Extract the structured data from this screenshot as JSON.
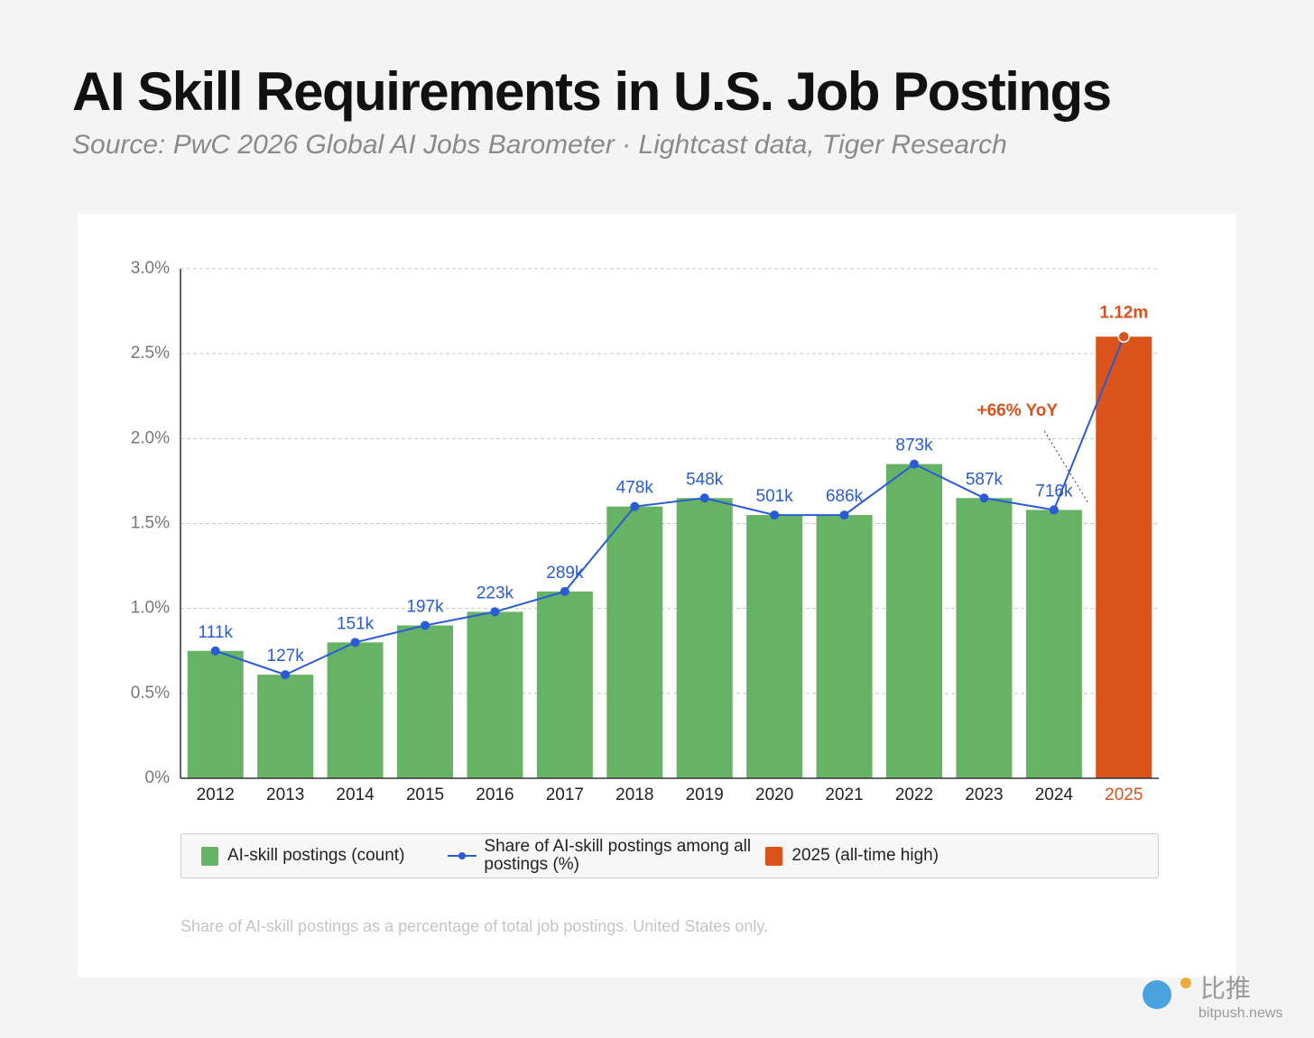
{
  "chart_data": {
    "type": "bar",
    "title": "AI Skill Requirements in U.S. Job Postings",
    "subtitle": "Source: PwC 2026 Global AI Jobs Barometer · Lightcast data, Tiger Research",
    "categories": [
      "2012",
      "2013",
      "2014",
      "2015",
      "2016",
      "2017",
      "2018",
      "2019",
      "2020",
      "2021",
      "2022",
      "2023",
      "2024",
      "2025"
    ],
    "series": [
      {
        "name": "AI-skill postings (count)",
        "type": "bar",
        "color": "#66b366",
        "values": [
          111000,
          127000,
          151000,
          197000,
          223000,
          289000,
          478000,
          548000,
          501000,
          686000,
          873000,
          587000,
          716000,
          1120000
        ],
        "value_labels": [
          "111k",
          "127k",
          "151k",
          "197k",
          "223k",
          "289k",
          "478k",
          "548k",
          "501k",
          "686k",
          "873k",
          "587k",
          "716k",
          "1.12m"
        ]
      },
      {
        "name": "Share of AI-skill postings among all postings (%)",
        "type": "line",
        "color": "#2a5bd7",
        "values": [
          0.75,
          0.61,
          0.8,
          0.9,
          0.98,
          1.1,
          1.6,
          1.65,
          1.55,
          1.55,
          1.85,
          1.65,
          1.58,
          2.6
        ]
      }
    ],
    "highlight": {
      "category": "2025",
      "name": "2025 (all-time high)",
      "color": "#d9531a"
    },
    "annotation": "+66% YoY",
    "footnote": "Share of AI-skill postings as a percentage of total job postings. United States only.",
    "ylim": [
      0,
      3.0
    ],
    "yticks": [
      {
        "value": 0,
        "label": "0%"
      },
      {
        "value": 0.5,
        "label": "0.5%"
      },
      {
        "value": 1.0,
        "label": "1.0%"
      },
      {
        "value": 1.5,
        "label": "1.5%"
      },
      {
        "value": 2.0,
        "label": "2.0%"
      },
      {
        "value": 2.5,
        "label": "2.5%"
      },
      {
        "value": 3.0,
        "label": "3.0%"
      }
    ],
    "grid": true,
    "watermark": {
      "brand": "比推",
      "site": "bitpush.news"
    }
  }
}
